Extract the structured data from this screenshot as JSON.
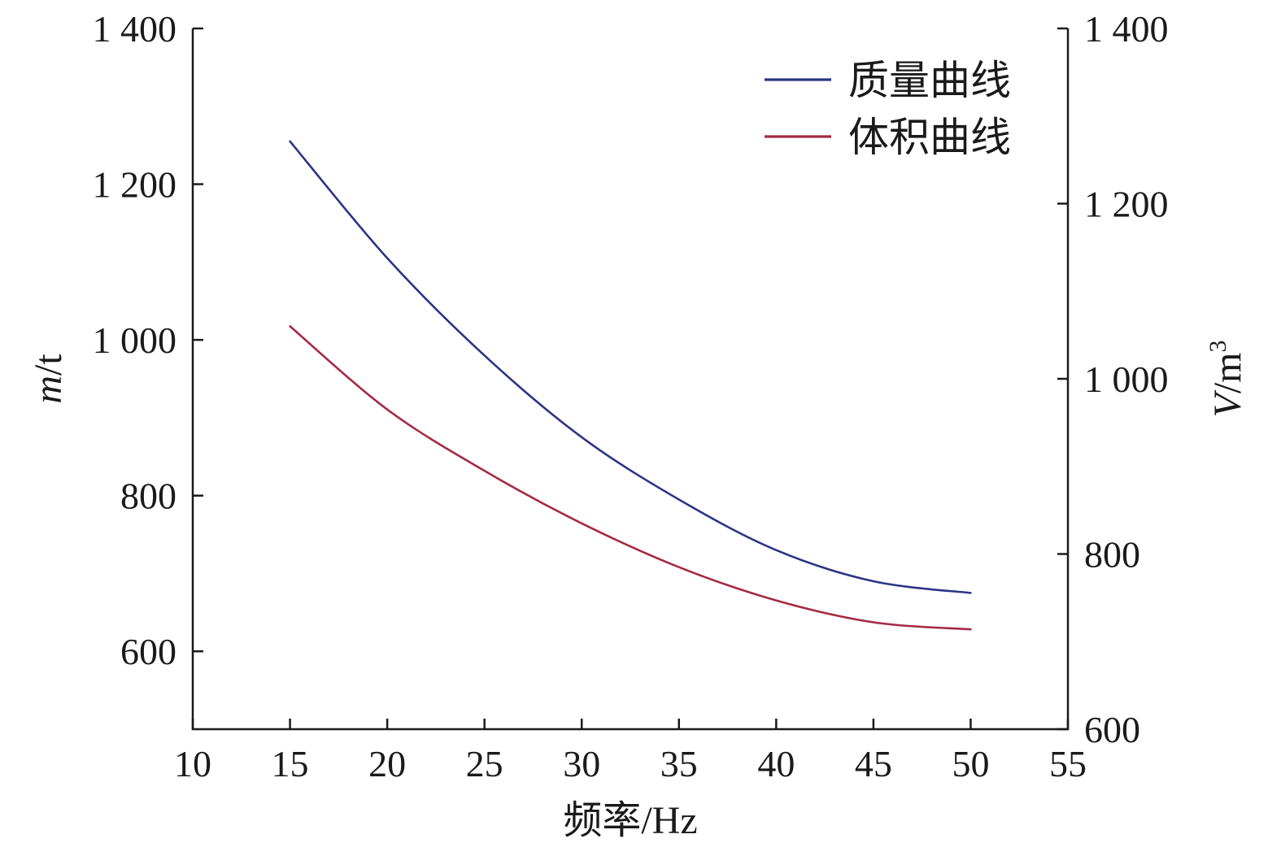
{
  "chart_data": {
    "type": "line",
    "xlabel": "频率/Hz",
    "ylabel_left": {
      "italic": "m",
      "rest": "/t"
    },
    "ylabel_right": {
      "italic": "V",
      "rest": "/m",
      "sup": "3"
    },
    "xlim": [
      10,
      55
    ],
    "xticks": [
      10,
      15,
      20,
      25,
      30,
      35,
      40,
      45,
      50,
      55
    ],
    "ylim_left": [
      500,
      1400
    ],
    "yticks_left": [
      600,
      800,
      1000,
      1200,
      1400
    ],
    "ytick_labels_left": [
      "600",
      "800",
      "1 000",
      "1 200",
      "1 400"
    ],
    "ylim_right": [
      600,
      1400
    ],
    "yticks_right": [
      600,
      800,
      1000,
      1200,
      1400
    ],
    "ytick_labels_right": [
      "600",
      "800",
      "1 000",
      "1 200",
      "1 400"
    ],
    "legend_position": "top-right",
    "series": [
      {
        "name": "质量曲线",
        "axis": "left",
        "color": "#2b3585",
        "x": [
          15,
          20,
          25,
          30,
          35,
          40,
          45,
          50
        ],
        "values": [
          1255,
          1105,
          980,
          875,
          795,
          730,
          690,
          675
        ]
      },
      {
        "name": "体积曲线",
        "axis": "right",
        "color": "#a52a45",
        "x": [
          15,
          20,
          25,
          30,
          35,
          40,
          45,
          50
        ],
        "values": [
          1060,
          965,
          895,
          835,
          785,
          747,
          722,
          714
        ]
      }
    ]
  }
}
